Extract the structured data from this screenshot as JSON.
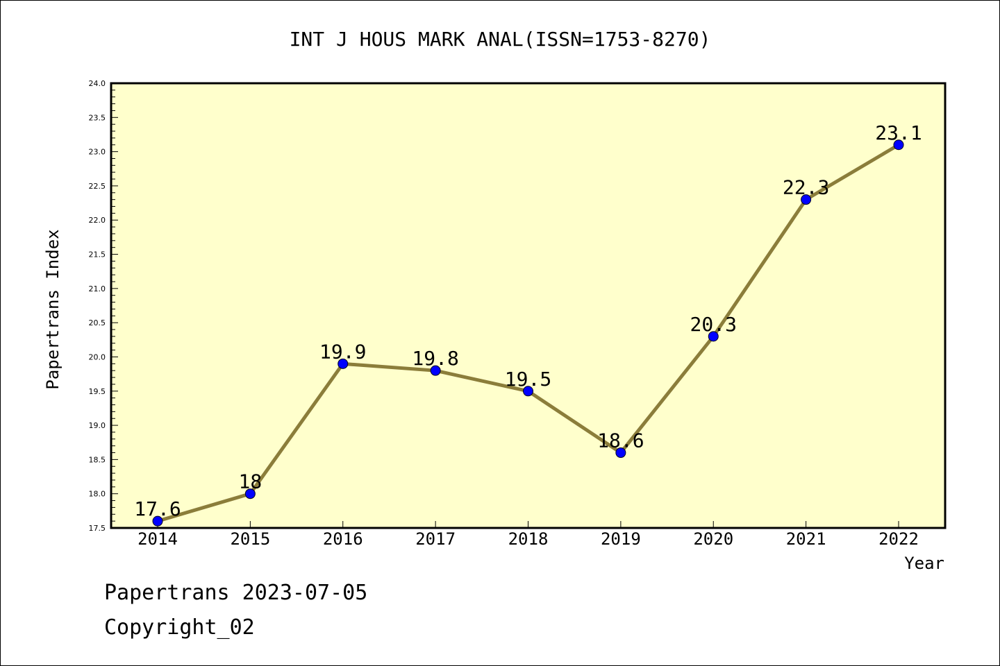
{
  "chart_data": {
    "type": "line",
    "title": "INT J HOUS MARK ANAL(ISSN=1753-8270)",
    "xlabel": "Year",
    "ylabel": "Papertrans Index",
    "x": [
      "2014",
      "2015",
      "2016",
      "2017",
      "2018",
      "2019",
      "2020",
      "2021",
      "2022"
    ],
    "values": [
      17.6,
      18,
      19.9,
      19.8,
      19.5,
      18.6,
      20.3,
      22.3,
      23.1
    ],
    "data_labels": [
      "17.6",
      "18",
      "19.9",
      "19.8",
      "19.5",
      "18.6",
      "20.3",
      "22.3",
      "23.1"
    ],
    "ylim": [
      17.5,
      24.0
    ],
    "yticks": [
      "17.5",
      "18.0",
      "18.5",
      "19.0",
      "19.5",
      "20.0",
      "20.5",
      "21.0",
      "21.5",
      "22.0",
      "22.5",
      "23.0",
      "23.5",
      "24.0"
    ],
    "grid": false,
    "colors": {
      "plot_background": "#ffffcc",
      "line": "#8b7d3a",
      "marker": "#0000ff"
    }
  },
  "footer": {
    "line1": "Papertrans 2023-07-05",
    "line2": "Copyright_02"
  }
}
